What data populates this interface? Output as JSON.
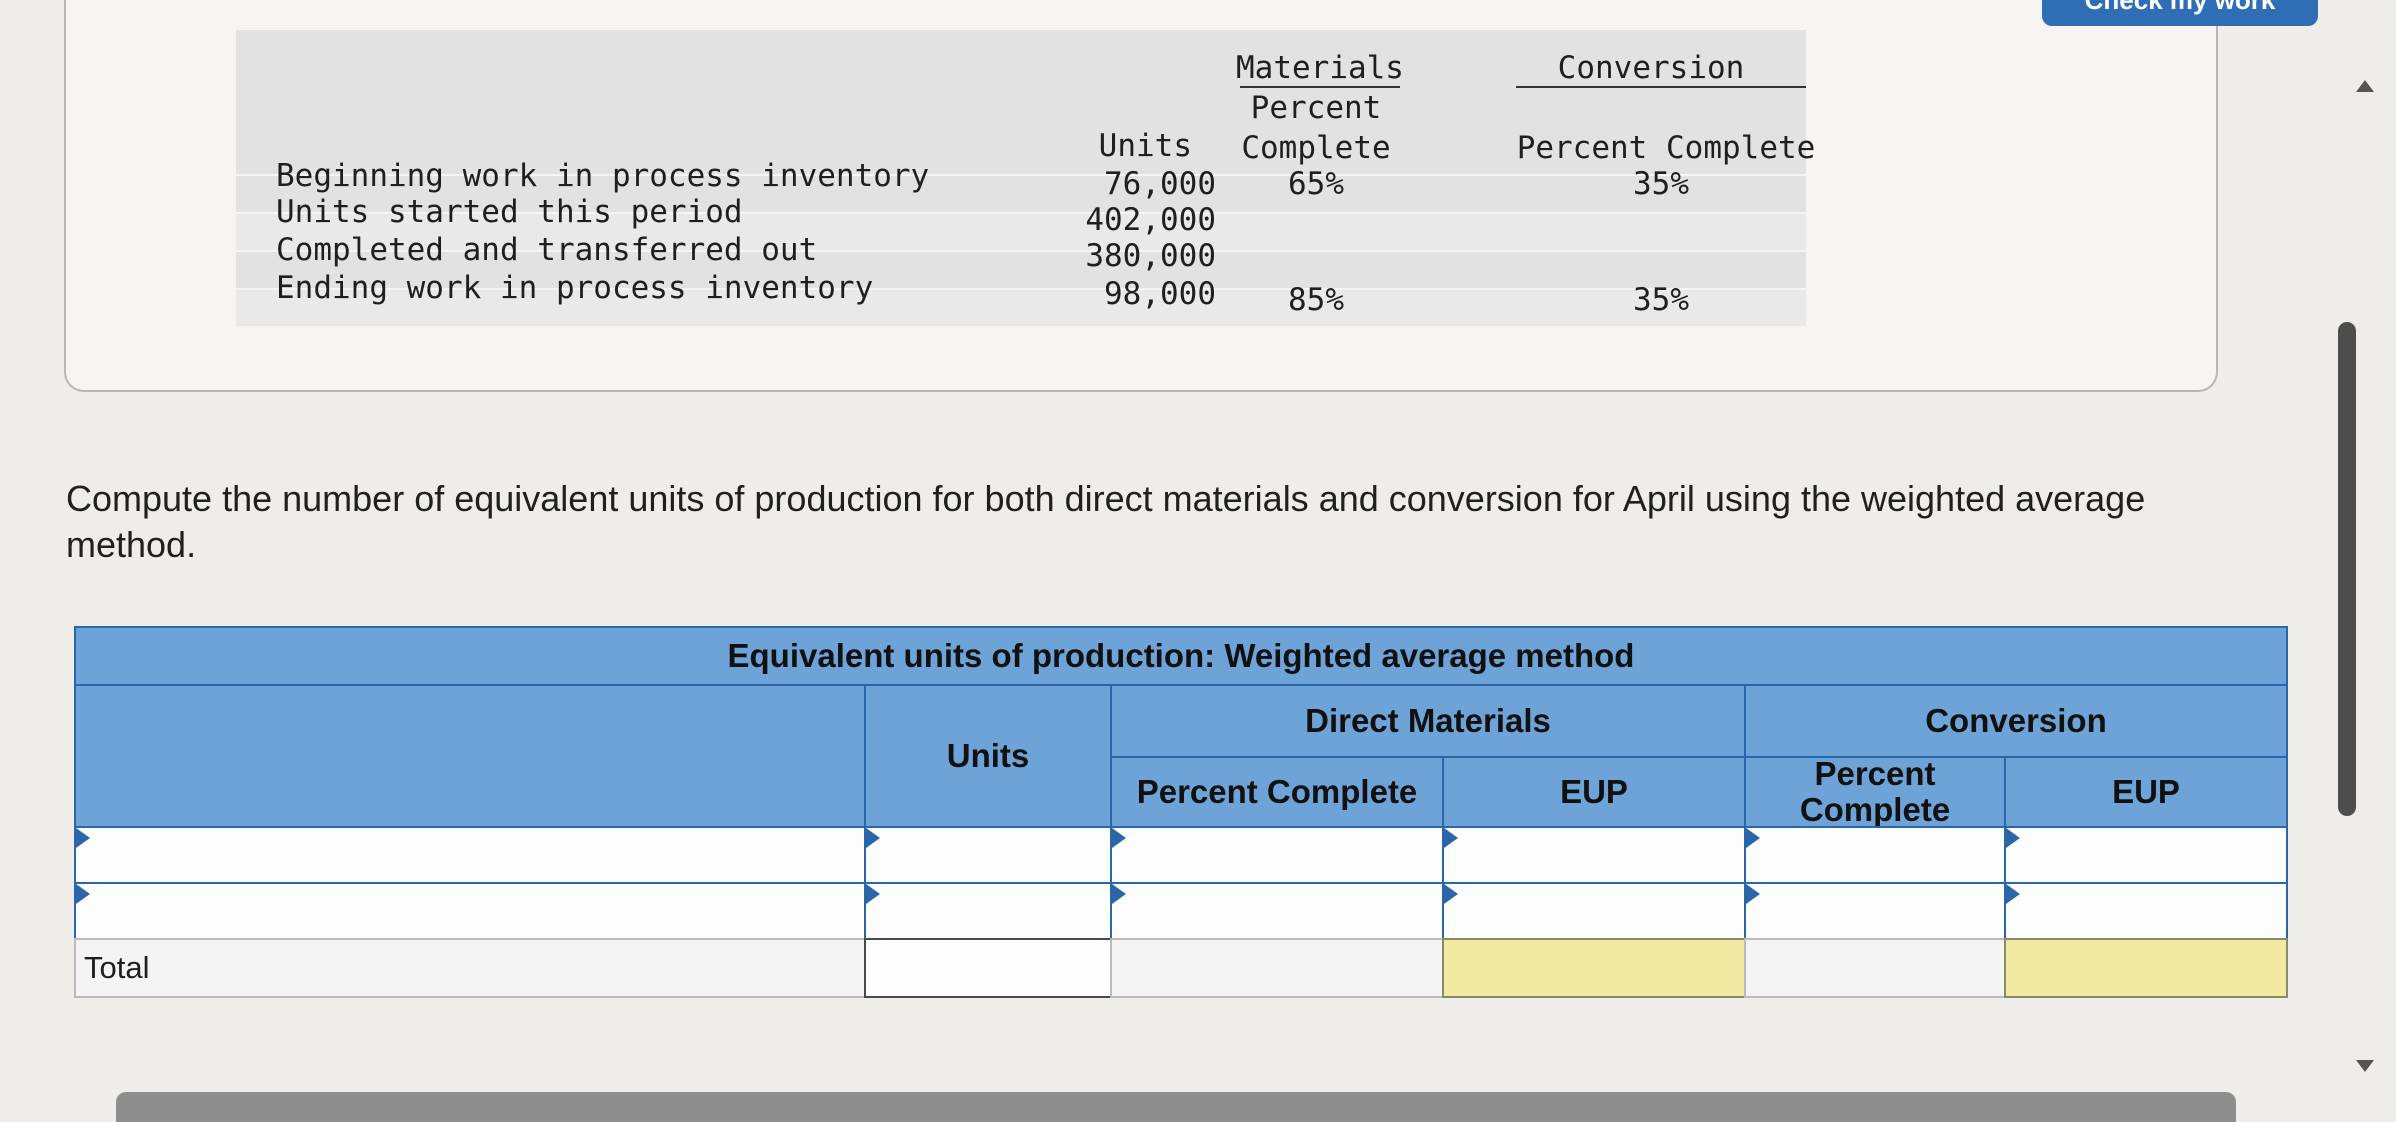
{
  "check_work": {
    "label": "Check my work"
  },
  "given": {
    "headers": {
      "materials": "Materials",
      "conversion": "Conversion",
      "units": "Units",
      "percent_line1": "Percent",
      "complete_line2": "Complete",
      "percent_complete": "Percent Complete"
    },
    "rows": [
      {
        "label": "Beginning work in process inventory",
        "units": "76,000",
        "materials": "65%",
        "conversion": "35%"
      },
      {
        "label": "Units started this period",
        "units": "402,000",
        "materials": "",
        "conversion": ""
      },
      {
        "label": "Completed and transferred out",
        "units": "380,000",
        "materials": "",
        "conversion": ""
      },
      {
        "label": "Ending work in process inventory",
        "units": "98,000",
        "materials": "85%",
        "conversion": "35%"
      }
    ]
  },
  "instruction": "Compute the number of equivalent units of production for both direct materials and conversion for April using the weighted average method.",
  "eup_table": {
    "title": "Equivalent units of production: Weighted average method",
    "direct_materials": "Direct Materials",
    "conversion": "Conversion",
    "units": "Units",
    "percent_complete_dm": "Percent Complete",
    "eup_dm": "EUP",
    "percent_complete_cv": "Percent Complete",
    "eup_cv": "EUP",
    "total_label": "Total"
  },
  "colors": {
    "header_blue": "#6ea3d8",
    "border_blue": "#2a66a8",
    "total_yellow": "#f2eaa0"
  }
}
